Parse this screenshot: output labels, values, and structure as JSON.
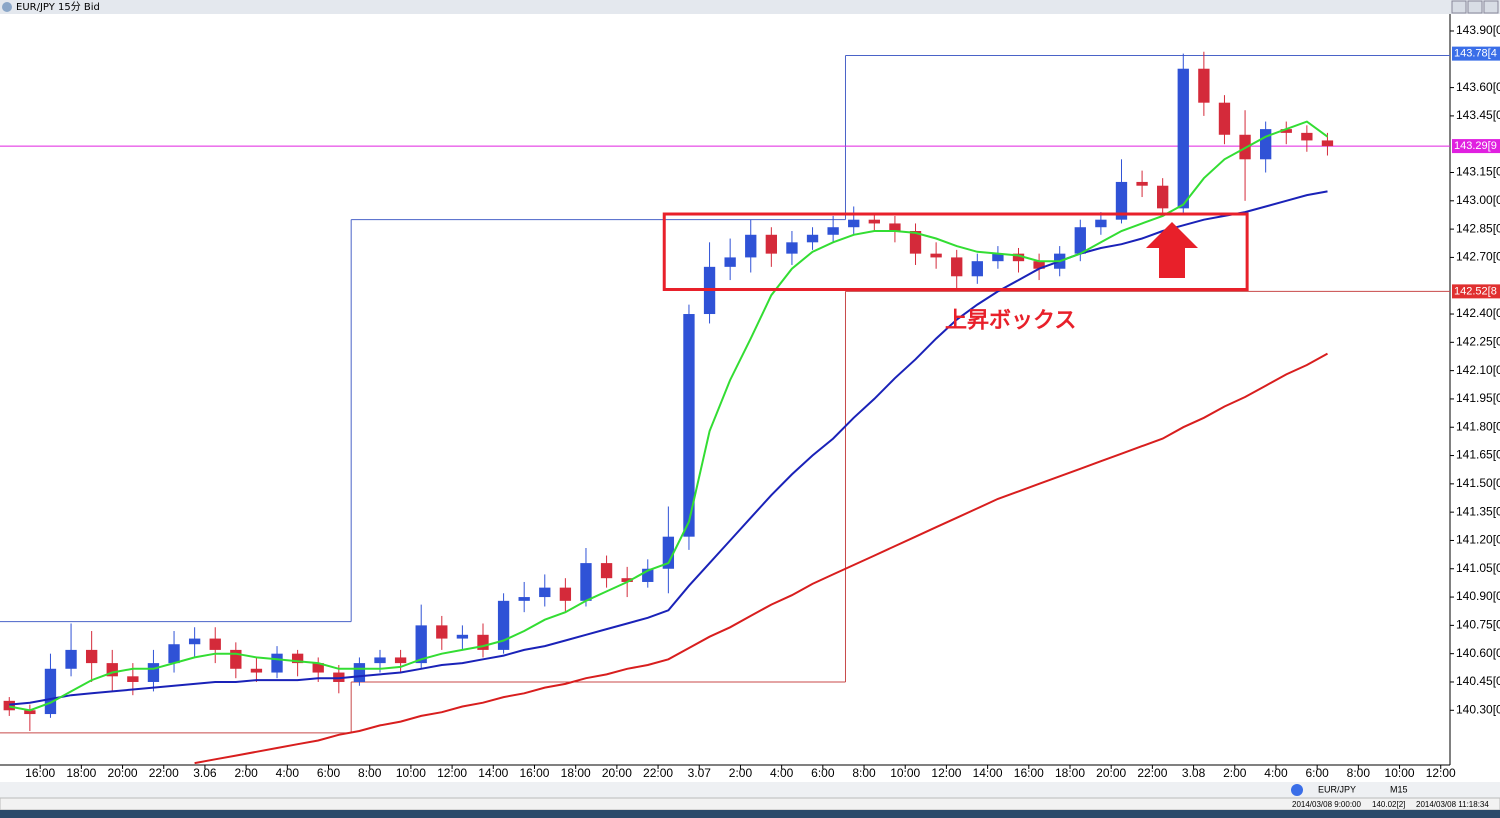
{
  "window": {
    "title": "EUR/JPY 15分 Bid",
    "status": [
      "EUR/JPY",
      "M15",
      "2014/03/08 9:00:00",
      "140.02[2]",
      "2014/03/08 11:18:34"
    ]
  },
  "chart_data": {
    "type": "candlestick",
    "xlim": [
      -0.45,
      69.95
    ],
    "ylim": [
      140.01,
      143.99
    ],
    "xticks": [
      {
        "value": 1.5,
        "label": "16:00"
      },
      {
        "value": 3.5,
        "label": "18:00"
      },
      {
        "value": 5.5,
        "label": "20:00"
      },
      {
        "value": 7.5,
        "label": "22:00"
      },
      {
        "value": 9.5,
        "label": "3.06"
      },
      {
        "value": 11.5,
        "label": "2:00"
      },
      {
        "value": 13.5,
        "label": "4:00"
      },
      {
        "value": 15.5,
        "label": "6:00"
      },
      {
        "value": 17.5,
        "label": "8:00"
      },
      {
        "value": 19.5,
        "label": "10:00"
      },
      {
        "value": 21.5,
        "label": "12:00"
      },
      {
        "value": 23.5,
        "label": "14:00"
      },
      {
        "value": 25.5,
        "label": "16:00"
      },
      {
        "value": 27.5,
        "label": "18:00"
      },
      {
        "value": 29.5,
        "label": "20:00"
      },
      {
        "value": 31.5,
        "label": "22:00"
      },
      {
        "value": 33.5,
        "label": "3.07"
      },
      {
        "value": 35.5,
        "label": "2:00"
      },
      {
        "value": 37.5,
        "label": "4:00"
      },
      {
        "value": 39.5,
        "label": "6:00"
      },
      {
        "value": 41.5,
        "label": "8:00"
      },
      {
        "value": 43.5,
        "label": "10:00"
      },
      {
        "value": 45.5,
        "label": "12:00"
      },
      {
        "value": 47.5,
        "label": "14:00"
      },
      {
        "value": 49.5,
        "label": "16:00"
      },
      {
        "value": 51.5,
        "label": "18:00"
      },
      {
        "value": 53.5,
        "label": "20:00"
      },
      {
        "value": 55.5,
        "label": "22:00"
      },
      {
        "value": 57.5,
        "label": "3.08"
      },
      {
        "value": 59.5,
        "label": "2:00"
      },
      {
        "value": 61.5,
        "label": "4:00"
      },
      {
        "value": 63.5,
        "label": "6:00"
      },
      {
        "value": 65.5,
        "label": "8:00"
      },
      {
        "value": 67.5,
        "label": "10:00"
      },
      {
        "value": 69.5,
        "label": "12:00"
      }
    ],
    "yticks": [
      {
        "value": 143.9,
        "label": "143.90[0"
      },
      {
        "value": 143.6,
        "label": "143.60[0"
      },
      {
        "value": 143.45,
        "label": "143.45[0"
      },
      {
        "value": 143.15,
        "label": "143.15[0"
      },
      {
        "value": 143.0,
        "label": "143.00[0"
      },
      {
        "value": 142.85,
        "label": "142.85[0"
      },
      {
        "value": 142.7,
        "label": "142.70[0"
      },
      {
        "value": 142.4,
        "label": "142.40[0"
      },
      {
        "value": 142.25,
        "label": "142.25[0"
      },
      {
        "value": 142.1,
        "label": "142.10[0"
      },
      {
        "value": 141.95,
        "label": "141.95[0"
      },
      {
        "value": 141.8,
        "label": "141.80[0"
      },
      {
        "value": 141.65,
        "label": "141.65[0"
      },
      {
        "value": 141.5,
        "label": "141.50[0"
      },
      {
        "value": 141.35,
        "label": "141.35[0"
      },
      {
        "value": 141.2,
        "label": "141.20[0"
      },
      {
        "value": 141.05,
        "label": "141.05[0"
      },
      {
        "value": 140.9,
        "label": "140.90[0"
      },
      {
        "value": 140.75,
        "label": "140.75[0"
      },
      {
        "value": 140.6,
        "label": "140.60[0"
      },
      {
        "value": 140.45,
        "label": "140.45[0"
      },
      {
        "value": 140.3,
        "label": "140.30[0"
      }
    ],
    "up_color": "#2f52d6",
    "down_color": "#d42a3a",
    "open": [
      140.35,
      140.3,
      140.28,
      140.52,
      140.62,
      140.55,
      140.48,
      140.45,
      140.55,
      140.65,
      140.68,
      140.62,
      140.52,
      140.5,
      140.6,
      140.55,
      140.5,
      140.45,
      140.55,
      140.58,
      140.55,
      140.75,
      140.68,
      140.7,
      140.62,
      140.88,
      140.9,
      140.95,
      140.88,
      141.08,
      141.0,
      140.98,
      141.05,
      141.22,
      142.4,
      142.65,
      142.7,
      142.82,
      142.72,
      142.78,
      142.82,
      142.86,
      142.9,
      142.88,
      142.84,
      142.72,
      142.7,
      142.6,
      142.68,
      142.72,
      142.68,
      142.64,
      142.72,
      142.86,
      142.9,
      143.1,
      143.08,
      142.96,
      143.7,
      143.52,
      143.35,
      143.22,
      143.38,
      143.36,
      143.32
    ],
    "high": [
      140.37,
      140.33,
      140.6,
      140.76,
      140.72,
      140.62,
      140.55,
      140.62,
      140.72,
      140.74,
      140.74,
      140.66,
      140.58,
      140.64,
      140.62,
      140.58,
      140.54,
      140.58,
      140.62,
      140.62,
      140.86,
      140.8,
      140.75,
      140.76,
      140.92,
      140.98,
      141.02,
      141.0,
      141.16,
      141.12,
      141.06,
      141.1,
      141.38,
      142.45,
      142.78,
      142.8,
      142.9,
      142.86,
      142.84,
      142.86,
      142.92,
      142.97,
      142.93,
      142.92,
      142.88,
      142.78,
      142.74,
      142.72,
      142.76,
      142.75,
      142.72,
      142.76,
      142.9,
      142.94,
      143.22,
      143.16,
      143.12,
      143.78,
      143.79,
      143.56,
      143.48,
      143.42,
      143.42,
      143.4,
      143.36
    ],
    "low": [
      140.27,
      140.19,
      140.26,
      140.48,
      140.45,
      140.4,
      140.38,
      140.4,
      140.5,
      140.58,
      140.55,
      140.47,
      140.45,
      140.47,
      140.48,
      140.45,
      140.39,
      140.43,
      140.5,
      140.5,
      140.52,
      140.62,
      140.62,
      140.58,
      140.6,
      140.82,
      140.85,
      140.82,
      140.85,
      140.95,
      140.9,
      140.95,
      140.92,
      141.15,
      142.35,
      142.58,
      142.62,
      142.65,
      142.66,
      142.74,
      142.78,
      142.82,
      142.84,
      142.78,
      142.66,
      142.64,
      142.53,
      142.56,
      142.64,
      142.62,
      142.58,
      142.6,
      142.68,
      142.82,
      142.88,
      143.02,
      142.93,
      142.93,
      143.45,
      143.3,
      143.0,
      143.15,
      143.3,
      143.26,
      143.24
    ],
    "close": [
      140.3,
      140.28,
      140.52,
      140.62,
      140.55,
      140.48,
      140.45,
      140.55,
      140.65,
      140.68,
      140.62,
      140.52,
      140.5,
      140.6,
      140.55,
      140.5,
      140.45,
      140.55,
      140.58,
      140.55,
      140.75,
      140.68,
      140.7,
      140.62,
      140.88,
      140.9,
      140.95,
      140.88,
      141.08,
      141.0,
      140.98,
      141.05,
      141.22,
      142.4,
      142.65,
      142.7,
      142.82,
      142.72,
      142.78,
      142.82,
      142.86,
      142.9,
      142.88,
      142.84,
      142.72,
      142.7,
      142.6,
      142.68,
      142.72,
      142.68,
      142.64,
      142.72,
      142.86,
      142.9,
      143.1,
      143.08,
      142.96,
      143.7,
      143.52,
      143.35,
      143.22,
      143.38,
      143.36,
      143.32,
      143.29
    ],
    "series": [
      {
        "color": "#d81e1e",
        "values": [
          null,
          null,
          null,
          null,
          null,
          null,
          null,
          null,
          null,
          140.02,
          140.04,
          140.06,
          140.08,
          140.1,
          140.12,
          140.14,
          140.17,
          140.19,
          140.22,
          140.24,
          140.27,
          140.29,
          140.32,
          140.34,
          140.37,
          140.39,
          140.42,
          140.44,
          140.47,
          140.49,
          140.52,
          140.54,
          140.57,
          140.63,
          140.69,
          140.74,
          140.8,
          140.86,
          140.91,
          140.97,
          141.02,
          141.07,
          141.12,
          141.17,
          141.22,
          141.27,
          141.32,
          141.37,
          141.42,
          141.46,
          141.5,
          141.54,
          141.58,
          141.62,
          141.66,
          141.7,
          141.74,
          141.8,
          141.85,
          141.91,
          141.96,
          142.02,
          142.08,
          142.13,
          142.19
        ]
      },
      {
        "color": "#1a22b8",
        "values": [
          140.33,
          140.34,
          140.36,
          140.38,
          140.39,
          140.4,
          140.41,
          140.42,
          140.43,
          140.44,
          140.45,
          140.45,
          140.46,
          140.46,
          140.46,
          140.47,
          140.47,
          140.48,
          140.49,
          140.5,
          140.52,
          140.54,
          140.55,
          140.57,
          140.59,
          140.62,
          140.64,
          140.67,
          140.7,
          140.73,
          140.76,
          140.79,
          140.83,
          140.96,
          141.08,
          141.2,
          141.32,
          141.44,
          141.55,
          141.65,
          141.74,
          141.85,
          141.95,
          142.06,
          142.16,
          142.27,
          142.37,
          142.45,
          142.52,
          142.58,
          142.64,
          142.68,
          142.72,
          142.75,
          142.77,
          142.8,
          142.84,
          142.87,
          142.9,
          142.92,
          142.94,
          142.97,
          143.0,
          143.03,
          143.05
        ]
      },
      {
        "color": "#33dd33",
        "values": [
          140.32,
          140.3,
          140.34,
          140.4,
          140.46,
          140.5,
          140.52,
          140.52,
          140.55,
          140.58,
          140.6,
          140.6,
          140.58,
          140.57,
          140.56,
          140.55,
          140.52,
          140.52,
          140.52,
          140.53,
          140.57,
          140.6,
          140.62,
          140.64,
          140.67,
          140.72,
          140.78,
          140.82,
          140.88,
          140.93,
          140.98,
          141.04,
          141.08,
          141.3,
          141.78,
          142.05,
          142.27,
          142.5,
          142.64,
          142.73,
          142.78,
          142.82,
          142.84,
          142.84,
          142.83,
          142.8,
          142.76,
          142.73,
          142.72,
          142.71,
          142.68,
          142.68,
          142.72,
          142.78,
          142.84,
          142.88,
          142.92,
          142.98,
          143.12,
          143.22,
          143.28,
          143.34,
          143.38,
          143.42,
          143.34
        ]
      }
    ],
    "day_boxes": [
      {
        "x": [
          -0.45,
          16.6
        ],
        "high": 140.77,
        "low": 140.18
      },
      {
        "x": [
          16.6,
          40.6
        ],
        "high": 142.9,
        "low": 140.45
      },
      {
        "x": [
          40.6,
          69.95
        ],
        "high": 143.77,
        "low": 142.52
      }
    ],
    "high_color": "#4a63c8",
    "low_color": "#c84a4a",
    "price_markers": [
      {
        "value": 143.78,
        "label": "143.78[4",
        "color": "#3a6ee8"
      },
      {
        "value": 143.29,
        "label": "143.29[9",
        "color": "#e020e0",
        "line": true
      },
      {
        "value": 142.52,
        "label": "142.52[8",
        "color": "#e03030"
      }
    ],
    "annotation": {
      "text": "上昇ボックス",
      "color": "#e8202a",
      "x": [
        31.8,
        60.1
      ],
      "y": [
        142.53,
        142.93
      ]
    }
  }
}
